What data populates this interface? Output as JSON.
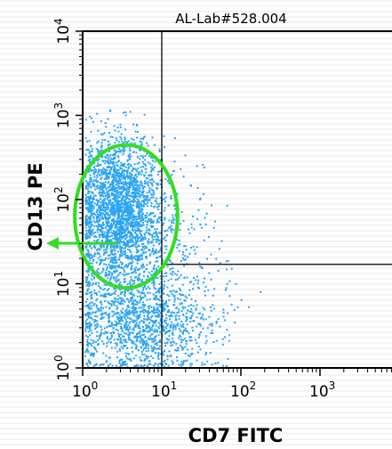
{
  "chart_data": {
    "type": "scatter",
    "title": "AL-Lab#528.004",
    "xlabel": "CD7 FITC",
    "ylabel": "CD13 PE",
    "xscale": "log",
    "yscale": "log",
    "xlim": [
      1,
      10000
    ],
    "ylim": [
      1,
      10000
    ],
    "x_ticks": [
      {
        "base": "10",
        "exp": "0",
        "value": 1
      },
      {
        "base": "10",
        "exp": "1",
        "value": 10
      },
      {
        "base": "10",
        "exp": "2",
        "value": 100
      },
      {
        "base": "10",
        "exp": "3",
        "value": 1000
      }
    ],
    "y_ticks": [
      {
        "base": "10",
        "exp": "0",
        "value": 1
      },
      {
        "base": "10",
        "exp": "1",
        "value": 10
      },
      {
        "base": "10",
        "exp": "2",
        "value": 100
      },
      {
        "base": "10",
        "exp": "3",
        "value": 1000
      },
      {
        "base": "10",
        "exp": "4",
        "value": 10000
      }
    ],
    "quadrant_x": 10,
    "quadrant_y": 17,
    "populations": [
      {
        "count": 2600,
        "log_center": [
          0.45,
          1.85
        ],
        "log_spread": [
          0.28,
          0.45
        ],
        "log_min": [
          0.02,
          0.05
        ]
      },
      {
        "count": 1300,
        "log_center": [
          0.75,
          0.55
        ],
        "log_spread": [
          0.45,
          0.3
        ],
        "log_min": [
          0.02,
          0.02
        ]
      },
      {
        "count": 250,
        "log_center": [
          0.9,
          1.4
        ],
        "log_spread": [
          0.45,
          0.45
        ],
        "log_min": [
          0.02,
          0.02
        ]
      }
    ],
    "gate": {
      "type": "ellipse",
      "log_center": [
        0.55,
        1.8
      ],
      "log_radius": [
        0.65,
        0.85
      ],
      "color": "#33dd22"
    },
    "arrow_target_log_y": 1.48,
    "grid": false,
    "point_color": "#2aa4f4",
    "axis_color": "#000000"
  }
}
